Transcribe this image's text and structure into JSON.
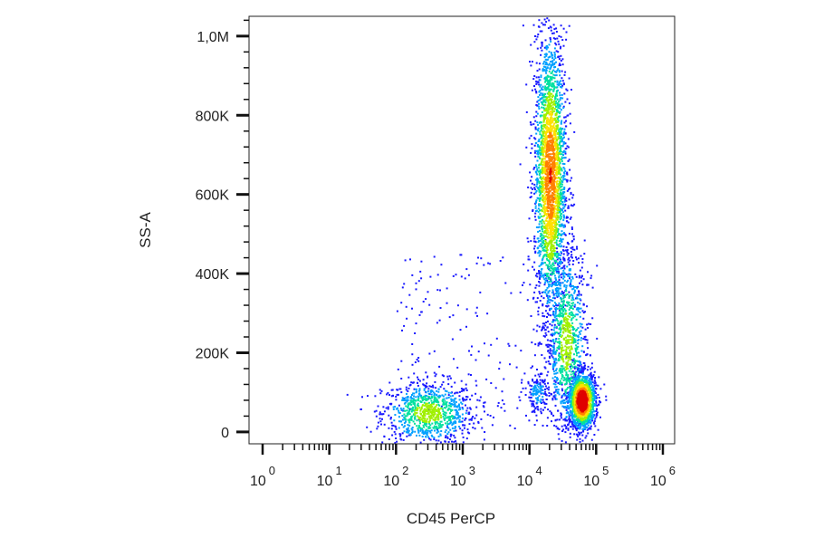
{
  "chart_data": {
    "type": "scatter",
    "title": "",
    "xlabel": "CD45 PerCP",
    "ylabel": "SS-A",
    "x_scale": "log",
    "xlim": [
      1,
      1000000
    ],
    "ylim": [
      -30000,
      1050000
    ],
    "x_ticks": [
      {
        "value": 1,
        "base": "10",
        "exp": "0"
      },
      {
        "value": 10,
        "base": "10",
        "exp": "1"
      },
      {
        "value": 100,
        "base": "10",
        "exp": "2"
      },
      {
        "value": 1000,
        "base": "10",
        "exp": "3"
      },
      {
        "value": 10000,
        "base": "10",
        "exp": "4"
      },
      {
        "value": 100000,
        "base": "10",
        "exp": "5"
      },
      {
        "value": 1000000,
        "base": "10",
        "exp": "6"
      }
    ],
    "y_ticks": [
      {
        "value": 0,
        "label": "0"
      },
      {
        "value": 200000,
        "label": "200K"
      },
      {
        "value": 400000,
        "label": "400K"
      },
      {
        "value": 600000,
        "label": "600K"
      },
      {
        "value": 800000,
        "label": "800K"
      },
      {
        "value": 1000000,
        "label": "1,0M"
      }
    ],
    "grid": false,
    "colormap": [
      "#1a1aff",
      "#00a0ff",
      "#00e0a0",
      "#a0f000",
      "#ffe000",
      "#ff8000",
      "#e00000"
    ],
    "populations": [
      {
        "x_center": 300,
        "x_spread_decades": 0.35,
        "y_center": 50000,
        "y_spread": 40000,
        "density": "medium"
      },
      {
        "x_center": 20000,
        "x_spread_decades": 0.12,
        "y_center": 650000,
        "y_spread": 180000,
        "density": "high"
      },
      {
        "x_center": 35000,
        "x_spread_decades": 0.15,
        "y_center": 230000,
        "y_spread": 120000,
        "density": "medium"
      },
      {
        "x_center": 60000,
        "x_spread_decades": 0.1,
        "y_center": 80000,
        "y_spread": 35000,
        "density": "very high"
      },
      {
        "x_center": 13000,
        "x_spread_decades": 0.1,
        "y_center": 100000,
        "y_spread": 25000,
        "density": "low"
      }
    ]
  }
}
